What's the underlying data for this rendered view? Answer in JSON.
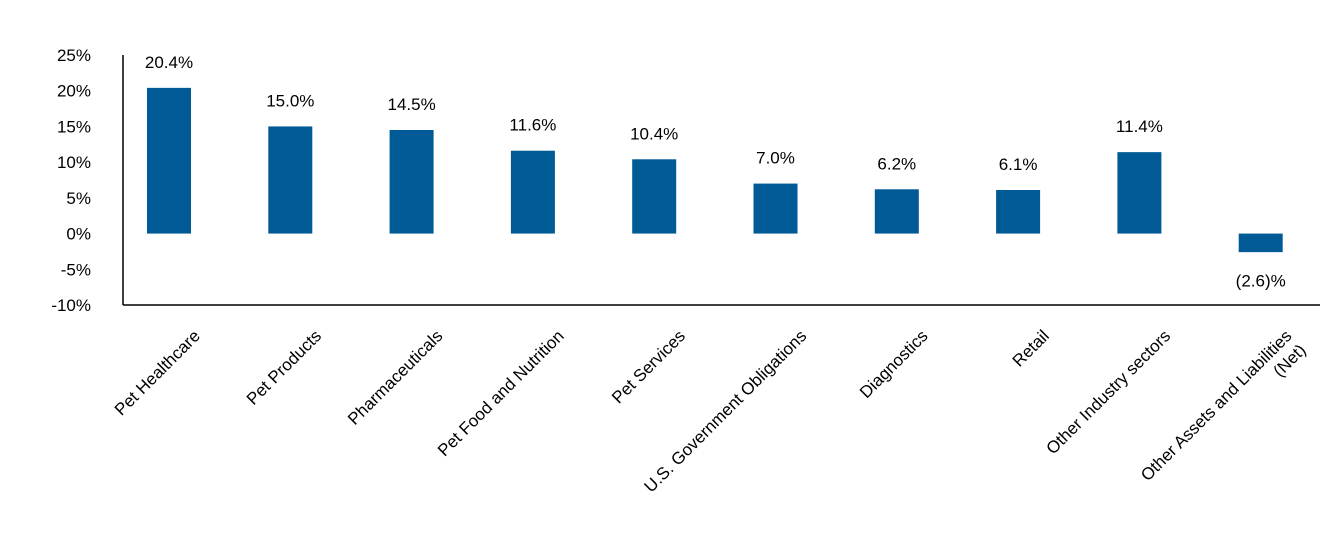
{
  "chart_data": {
    "type": "bar",
    "title": "",
    "xlabel": "",
    "ylabel": "",
    "ylim": [
      -10,
      25
    ],
    "yticks": [
      25,
      20,
      15,
      10,
      5,
      0,
      -5,
      -10
    ],
    "ytick_labels": [
      "25%",
      "20%",
      "15%",
      "10%",
      "5%",
      "0%",
      "-5%",
      "-10%"
    ],
    "grid": false,
    "legend": "none",
    "bar_color": "#005A96",
    "categories": [
      [
        "Pet Healthcare"
      ],
      [
        "Pet Products"
      ],
      [
        "Pharmaceuticals"
      ],
      [
        "Pet Food and Nutrition"
      ],
      [
        "Pet Services"
      ],
      [
        "U.S. Government Obligations"
      ],
      [
        "Diagnostics"
      ],
      [
        "Retail"
      ],
      [
        "Other Industry sectors"
      ],
      [
        "Other Assets and Liabilities",
        "(Net)"
      ]
    ],
    "values": [
      20.4,
      15.0,
      14.5,
      11.6,
      10.4,
      7.0,
      6.2,
      6.1,
      11.4,
      -2.6
    ],
    "data_labels": [
      "20.4%",
      "15.0%",
      "14.5%",
      "11.6%",
      "10.4%",
      "7.0%",
      "6.2%",
      "6.1%",
      "11.4%",
      "(2.6)%"
    ]
  }
}
